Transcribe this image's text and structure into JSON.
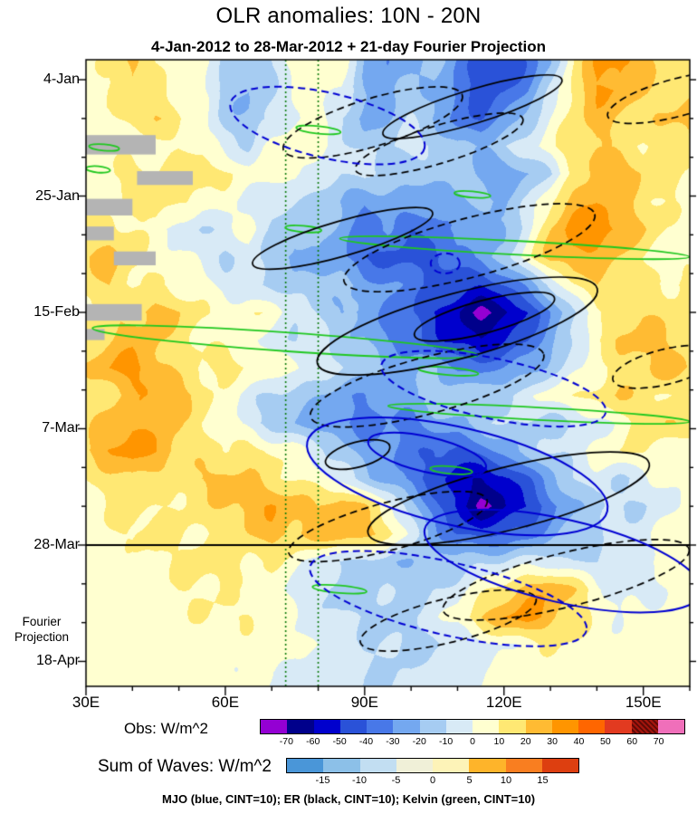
{
  "title": "OLR anomalies: 10N - 20N",
  "subtitle": "4-Jan-2012 to 28-Mar-2012 + 21-day Fourier Projection",
  "footer": "MJO (blue, CINT=10); ER (black, CINT=10); Kelvin (green, CINT=10)",
  "axes": {
    "x": {
      "range": [
        30,
        160
      ],
      "ticks": [
        {
          "label": "30E",
          "lon": 30
        },
        {
          "label": "60E",
          "lon": 60
        },
        {
          "label": "90E",
          "lon": 90
        },
        {
          "label": "120E",
          "lon": 120
        },
        {
          "label": "150E",
          "lon": 150
        }
      ],
      "minor_step": 10
    },
    "y": {
      "range_days": [
        -3.6,
        109.5
      ],
      "ticks": [
        {
          "label": "4-Jan",
          "day": 0
        },
        {
          "label": "25-Jan",
          "day": 21
        },
        {
          "label": "15-Feb",
          "day": 42
        },
        {
          "label": "7-Mar",
          "day": 63
        },
        {
          "label": "28-Mar",
          "day": 84
        },
        {
          "label": "18-Apr",
          "day": 105
        }
      ],
      "minor_step": 7,
      "fourier_1": "Fourier",
      "fourier_2": "Projection"
    }
  },
  "chart_data": {
    "type": "heatmap",
    "title": "OLR anomalies: 10N - 20N",
    "units": "W/m^2",
    "x_lons": [
      30,
      35,
      40,
      45,
      50,
      55,
      60,
      65,
      70,
      75,
      80,
      85,
      90,
      95,
      100,
      105,
      110,
      115,
      120,
      125,
      130,
      135,
      140,
      145,
      150,
      155,
      160
    ],
    "y_days": [
      -3,
      2,
      7,
      12,
      17,
      22,
      27,
      32,
      37,
      42,
      47,
      52,
      57,
      62,
      67,
      72,
      77,
      82,
      87,
      92,
      97,
      102,
      107
    ],
    "values": [
      [
        5,
        10,
        25,
        10,
        5,
        5,
        -10,
        -15,
        -10,
        5,
        10,
        5,
        -20,
        -30,
        -25,
        -15,
        -30,
        -45,
        -50,
        -40,
        -20,
        10,
        30,
        35,
        25,
        15,
        10
      ],
      [
        5,
        10,
        20,
        15,
        5,
        0,
        -15,
        -20,
        -10,
        0,
        5,
        0,
        -20,
        -25,
        -15,
        -20,
        -35,
        -45,
        -40,
        -30,
        -10,
        15,
        30,
        30,
        20,
        15,
        15
      ],
      [
        5,
        5,
        15,
        20,
        10,
        5,
        -15,
        -20,
        -10,
        0,
        5,
        -10,
        -25,
        -20,
        -10,
        -20,
        -35,
        -40,
        -30,
        -15,
        0,
        15,
        25,
        20,
        15,
        20,
        25
      ],
      [
        5,
        5,
        5,
        5,
        10,
        5,
        -5,
        -10,
        5,
        10,
        5,
        -5,
        -15,
        -10,
        -5,
        -10,
        -20,
        -20,
        -10,
        -5,
        5,
        20,
        20,
        15,
        10,
        15,
        20
      ],
      [
        5,
        10,
        15,
        10,
        15,
        20,
        10,
        5,
        5,
        5,
        -5,
        -10,
        -5,
        -15,
        -20,
        -15,
        -10,
        -25,
        -30,
        -20,
        -10,
        10,
        25,
        30,
        20,
        15,
        10
      ],
      [
        5,
        5,
        10,
        20,
        10,
        5,
        5,
        -5,
        -10,
        -10,
        -15,
        -20,
        -30,
        -25,
        -20,
        -30,
        -25,
        -15,
        -20,
        -10,
        10,
        25,
        30,
        25,
        15,
        10,
        5
      ],
      [
        10,
        15,
        10,
        5,
        -5,
        -10,
        -5,
        5,
        -10,
        -20,
        -15,
        -25,
        -35,
        -30,
        -40,
        -35,
        -25,
        -30,
        -20,
        -5,
        20,
        35,
        40,
        30,
        20,
        10,
        5
      ],
      [
        20,
        25,
        15,
        5,
        5,
        -5,
        -10,
        -5,
        -15,
        -25,
        -20,
        -30,
        -40,
        -45,
        -40,
        -45,
        -35,
        -25,
        -15,
        5,
        25,
        30,
        25,
        20,
        10,
        5,
        5
      ],
      [
        15,
        20,
        10,
        10,
        5,
        5,
        -5,
        -10,
        -10,
        -15,
        -20,
        -15,
        -25,
        -30,
        -35,
        -40,
        -45,
        -50,
        -40,
        -25,
        -10,
        10,
        20,
        15,
        10,
        10,
        15
      ],
      [
        10,
        15,
        20,
        25,
        20,
        10,
        5,
        10,
        5,
        -5,
        -10,
        -20,
        -25,
        -30,
        -40,
        -50,
        -60,
        -72,
        -65,
        -50,
        -30,
        -10,
        5,
        15,
        20,
        15,
        10
      ],
      [
        15,
        20,
        25,
        20,
        15,
        10,
        5,
        5,
        -5,
        -10,
        -5,
        -15,
        -20,
        -30,
        -35,
        -45,
        -55,
        -60,
        -50,
        -40,
        -25,
        -10,
        10,
        20,
        25,
        20,
        15
      ],
      [
        20,
        30,
        35,
        25,
        15,
        10,
        15,
        10,
        5,
        5,
        -5,
        -10,
        -15,
        -20,
        -25,
        -20,
        -30,
        -35,
        -30,
        -25,
        -15,
        -5,
        5,
        15,
        20,
        25,
        20
      ],
      [
        10,
        15,
        25,
        30,
        25,
        15,
        5,
        -5,
        -10,
        -15,
        -20,
        -25,
        -30,
        -25,
        -20,
        -15,
        -10,
        -15,
        -10,
        -5,
        5,
        10,
        15,
        20,
        15,
        10,
        10
      ],
      [
        15,
        25,
        30,
        25,
        20,
        10,
        5,
        -5,
        -15,
        -20,
        -25,
        -30,
        -35,
        -30,
        -35,
        -25,
        -20,
        -15,
        -10,
        -10,
        -15,
        -10,
        -5,
        5,
        15,
        20,
        15
      ],
      [
        20,
        30,
        35,
        30,
        20,
        15,
        10,
        15,
        10,
        5,
        -5,
        -15,
        -25,
        -30,
        -35,
        -40,
        -45,
        -35,
        -25,
        -15,
        -10,
        -5,
        5,
        10,
        10,
        5,
        5
      ],
      [
        10,
        15,
        20,
        15,
        15,
        20,
        25,
        20,
        15,
        10,
        5,
        -5,
        -15,
        -25,
        -35,
        -45,
        -55,
        -60,
        -55,
        -40,
        -25,
        -10,
        -5,
        -10,
        -5,
        5,
        5
      ],
      [
        5,
        10,
        15,
        10,
        10,
        15,
        20,
        25,
        30,
        25,
        20,
        30,
        20,
        5,
        -15,
        -35,
        -55,
        -72,
        -62,
        -50,
        -35,
        -20,
        -15,
        -10,
        -10,
        -5,
        5
      ],
      [
        5,
        10,
        10,
        15,
        10,
        10,
        15,
        20,
        25,
        20,
        25,
        30,
        25,
        15,
        -5,
        -25,
        -40,
        -45,
        -40,
        -35,
        -25,
        -15,
        -10,
        -5,
        -5,
        5,
        10
      ],
      [
        5,
        5,
        5,
        10,
        10,
        15,
        15,
        10,
        10,
        5,
        -5,
        -10,
        -15,
        -15,
        -20,
        -15,
        -15,
        -10,
        -10,
        -5,
        -5,
        -10,
        -10,
        -5,
        0,
        5,
        5
      ],
      [
        5,
        5,
        5,
        5,
        10,
        10,
        10,
        5,
        5,
        -5,
        -10,
        -15,
        -15,
        -10,
        -15,
        -10,
        -5,
        5,
        15,
        25,
        30,
        20,
        5,
        -5,
        -5,
        0,
        5
      ],
      [
        5,
        5,
        5,
        5,
        5,
        10,
        10,
        10,
        5,
        0,
        -5,
        -10,
        -10,
        -15,
        -10,
        -5,
        5,
        20,
        30,
        35,
        25,
        15,
        5,
        0,
        5,
        5,
        5
      ],
      [
        5,
        5,
        5,
        5,
        5,
        5,
        5,
        5,
        5,
        0,
        0,
        -5,
        -10,
        -10,
        -15,
        -10,
        -10,
        -5,
        0,
        5,
        10,
        10,
        5,
        5,
        5,
        5,
        5
      ],
      [
        5,
        5,
        5,
        5,
        5,
        5,
        5,
        0,
        0,
        -5,
        -5,
        -5,
        -10,
        -10,
        -10,
        -5,
        -5,
        0,
        5,
        5,
        5,
        5,
        5,
        5,
        5,
        5,
        5
      ]
    ],
    "levels": [
      -70,
      -60,
      -50,
      -40,
      -30,
      -20,
      -10,
      0,
      10,
      20,
      30,
      40,
      50,
      60,
      70
    ],
    "colors": [
      "#9400d3",
      "#00008b",
      "#0000cd",
      "#2a52d8",
      "#4878e8",
      "#74a8f0",
      "#a6ccf2",
      "#d8eaf6",
      "#ffffd0",
      "#ffe873",
      "#ffbb33",
      "#ff9500",
      "#ff6600",
      "#e23a20",
      "#a5150d",
      "#f06fba"
    ],
    "missing_color": "#b4b4b4",
    "missing_rects": [
      {
        "lon0": 30,
        "lon1": 45,
        "day0": 10,
        "day1": 13.5
      },
      {
        "lon0": 41,
        "lon1": 53,
        "day0": 16.5,
        "day1": 19
      },
      {
        "lon0": 30,
        "lon1": 40,
        "day0": 21.5,
        "day1": 24.5
      },
      {
        "lon0": 30,
        "lon1": 36,
        "day0": 26.5,
        "day1": 29
      },
      {
        "lon0": 36,
        "lon1": 45,
        "day0": 31,
        "day1": 33.5
      },
      {
        "lon0": 30,
        "lon1": 42,
        "day0": 40.5,
        "day1": 43.5
      },
      {
        "lon0": 30,
        "lon1": 34,
        "day0": 45,
        "day1": 47
      }
    ],
    "vlines": {
      "lons": [
        73,
        80
      ],
      "color": "#0a7a0a",
      "style": "dotted"
    },
    "hline_day": 84,
    "overlays": [
      {
        "name": "Kelvin",
        "color": "#1fc81f",
        "cint": 10,
        "ellipses": [
          {
            "cx": 0.385,
            "cy": 0.112,
            "rx": 0.037,
            "ry": 0.006,
            "rot": 6,
            "dash": false
          },
          {
            "cx": 0.03,
            "cy": 0.14,
            "rx": 0.025,
            "ry": 0.005,
            "rot": 5,
            "dash": false
          },
          {
            "cx": 0.02,
            "cy": 0.175,
            "rx": 0.02,
            "ry": 0.005,
            "rot": 5,
            "dash": false
          },
          {
            "cx": 0.64,
            "cy": 0.215,
            "rx": 0.03,
            "ry": 0.005,
            "rot": 5,
            "dash": false
          },
          {
            "cx": 0.36,
            "cy": 0.27,
            "rx": 0.03,
            "ry": 0.005,
            "rot": 5,
            "dash": false
          },
          {
            "cx": 0.71,
            "cy": 0.3,
            "rx": 0.29,
            "ry": 0.011,
            "rot": 3,
            "dash": false
          },
          {
            "cx": 0.33,
            "cy": 0.45,
            "rx": 0.32,
            "ry": 0.015,
            "rot": 4,
            "dash": false
          },
          {
            "cx": 0.6,
            "cy": 0.497,
            "rx": 0.05,
            "ry": 0.006,
            "rot": 5,
            "dash": false
          },
          {
            "cx": 0.75,
            "cy": 0.565,
            "rx": 0.25,
            "ry": 0.01,
            "rot": 3,
            "dash": false
          },
          {
            "cx": 0.605,
            "cy": 0.655,
            "rx": 0.035,
            "ry": 0.006,
            "rot": 5,
            "dash": false
          },
          {
            "cx": 0.42,
            "cy": 0.845,
            "rx": 0.045,
            "ry": 0.006,
            "rot": 5,
            "dash": false
          }
        ]
      },
      {
        "name": "ER",
        "color": "#000000",
        "cint": 10,
        "ellipses": [
          {
            "cx": 0.64,
            "cy": 0.075,
            "rx": 0.155,
            "ry": 0.027,
            "rot": -17,
            "dash": false
          },
          {
            "cx": 0.475,
            "cy": 0.1,
            "rx": 0.155,
            "ry": 0.038,
            "rot": -17,
            "dash": true
          },
          {
            "cx": 0.585,
            "cy": 0.135,
            "rx": 0.145,
            "ry": 0.03,
            "rot": -17,
            "dash": true
          },
          {
            "cx": 0.98,
            "cy": 0.06,
            "rx": 0.12,
            "ry": 0.03,
            "rot": -15,
            "dash": true
          },
          {
            "cx": 0.425,
            "cy": 0.285,
            "rx": 0.155,
            "ry": 0.028,
            "rot": -16,
            "dash": false
          },
          {
            "cx": 0.635,
            "cy": 0.3,
            "rx": 0.215,
            "ry": 0.047,
            "rot": -15,
            "dash": true
          },
          {
            "cx": 0.615,
            "cy": 0.425,
            "rx": 0.24,
            "ry": 0.052,
            "rot": -15,
            "dash": false
          },
          {
            "cx": 0.66,
            "cy": 0.41,
            "rx": 0.12,
            "ry": 0.026,
            "rot": -15,
            "dash": false
          },
          {
            "cx": 0.565,
            "cy": 0.52,
            "rx": 0.2,
            "ry": 0.045,
            "rot": -15,
            "dash": true
          },
          {
            "cx": 0.96,
            "cy": 0.49,
            "rx": 0.09,
            "ry": 0.028,
            "rot": -14,
            "dash": true
          },
          {
            "cx": 0.45,
            "cy": 0.63,
            "rx": 0.055,
            "ry": 0.02,
            "rot": -15,
            "dash": false
          },
          {
            "cx": 0.7,
            "cy": 0.7,
            "rx": 0.24,
            "ry": 0.05,
            "rot": -14,
            "dash": false
          },
          {
            "cx": 0.5,
            "cy": 0.745,
            "rx": 0.17,
            "ry": 0.038,
            "rot": -15,
            "dash": true
          },
          {
            "cx": 0.795,
            "cy": 0.83,
            "rx": 0.21,
            "ry": 0.043,
            "rot": -14,
            "dash": true
          },
          {
            "cx": 0.6,
            "cy": 0.895,
            "rx": 0.15,
            "ry": 0.035,
            "rot": -14,
            "dash": true
          }
        ]
      },
      {
        "name": "MJO",
        "color": "#0000d2",
        "cint": 10,
        "ellipses": [
          {
            "cx": 0.4,
            "cy": 0.105,
            "rx": 0.165,
            "ry": 0.052,
            "rot": 13,
            "dash": true
          },
          {
            "cx": 0.595,
            "cy": 0.325,
            "rx": 0.024,
            "ry": 0.016,
            "rot": 0,
            "dash": true
          },
          {
            "cx": 0.675,
            "cy": 0.525,
            "rx": 0.19,
            "ry": 0.048,
            "rot": 12,
            "dash": true
          },
          {
            "cx": 0.615,
            "cy": 0.665,
            "rx": 0.255,
            "ry": 0.078,
            "rot": 13,
            "dash": false
          },
          {
            "cx": 0.565,
            "cy": 0.63,
            "rx": 0.1,
            "ry": 0.028,
            "rot": 13,
            "dash": false
          },
          {
            "cx": 0.79,
            "cy": 0.8,
            "rx": 0.235,
            "ry": 0.066,
            "rot": 13,
            "dash": false
          },
          {
            "cx": 0.6,
            "cy": 0.86,
            "rx": 0.235,
            "ry": 0.058,
            "rot": 13,
            "dash": true
          }
        ]
      }
    ]
  },
  "colorbars": [
    {
      "label": "Obs: W/m^2",
      "colors": [
        "#9400d3",
        "#00008b",
        "#0000cd",
        "#2a52d8",
        "#4878e8",
        "#74a8f0",
        "#a6ccf2",
        "#d8eaf6",
        "#ffffd0",
        "#ffe873",
        "#ffbb33",
        "#ff9500",
        "#ff6600",
        "#e23a20",
        "#a5150d",
        "#f06fba"
      ],
      "ticks": [
        "-70",
        "-60",
        "-50",
        "-40",
        "-30",
        "-20",
        "-10",
        "0",
        "10",
        "20",
        "30",
        "40",
        "50",
        "60",
        "70"
      ],
      "hatch_index": 14,
      "hatch_stripe": "#5f0a06"
    },
    {
      "label": "Sum of Waves: W/m^2",
      "colors": [
        "#4a96d8",
        "#8cc0e8",
        "#c2def2",
        "#f0f0d8",
        "#fdf3b8",
        "#feb42a",
        "#f97e20",
        "#dd3f10"
      ],
      "ticks": [
        "-15",
        "-10",
        "-5",
        "0",
        "5",
        "10",
        "15"
      ]
    }
  ]
}
